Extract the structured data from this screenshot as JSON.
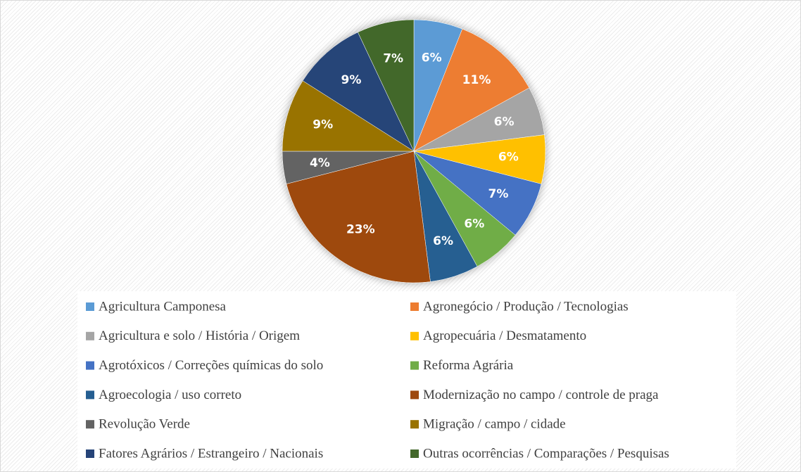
{
  "chart_data": {
    "type": "pie",
    "categories": [
      "Agricultura Camponesa",
      "Agronegócio / Produção / Tecnologias",
      "Agricultura e solo / História / Origem",
      "Agropecuária / Desmatamento",
      "Agrotóxicos / Correções químicas do solo",
      "Reforma Agrária",
      "Agroecologia / uso correto",
      "Modernização no campo / controle de praga",
      "Revolução Verde",
      "Migração / campo / cidade",
      "Fatores Agrários / Estrangeiro / Nacionais",
      "Outras ocorrências / Comparações / Pesquisas"
    ],
    "values": [
      6,
      11,
      6,
      6,
      7,
      6,
      6,
      23,
      4,
      9,
      9,
      7
    ],
    "value_labels": [
      "6%",
      "11%",
      "6%",
      "6%",
      "7%",
      "6%",
      "6%",
      "23%",
      "4%",
      "9%",
      "9%",
      "7%"
    ],
    "colors": [
      "#5b9bd5",
      "#ed7d31",
      "#a5a5a5",
      "#ffc000",
      "#4472c4",
      "#70ad47",
      "#255e91",
      "#9e480e",
      "#636363",
      "#997300",
      "#264478",
      "#43682b"
    ],
    "legend": "bottom"
  }
}
